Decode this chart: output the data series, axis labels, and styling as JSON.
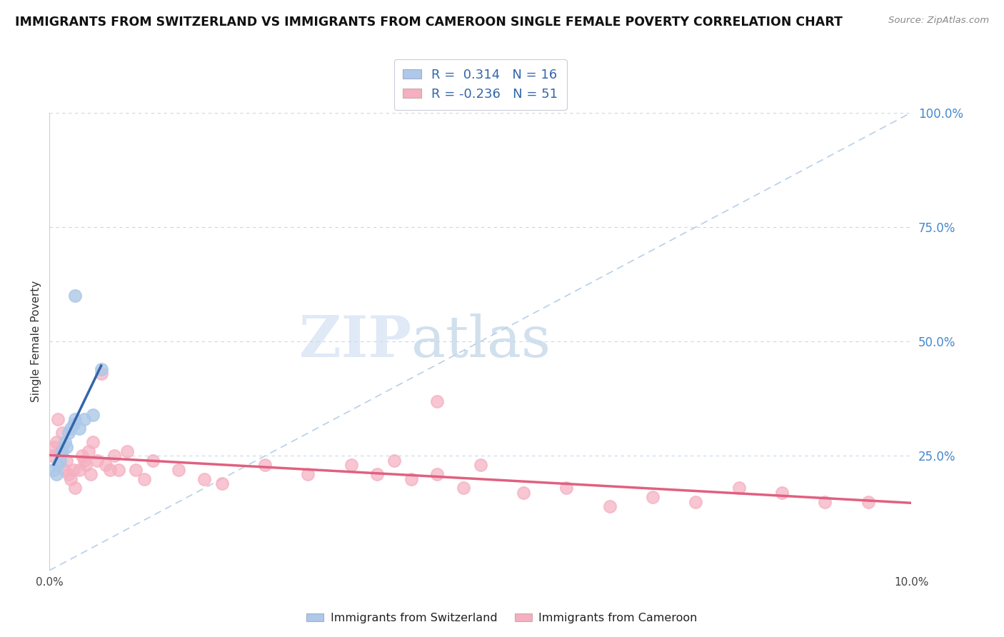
{
  "title": "IMMIGRANTS FROM SWITZERLAND VS IMMIGRANTS FROM CAMEROON SINGLE FEMALE POVERTY CORRELATION CHART",
  "source": "Source: ZipAtlas.com",
  "xlabel": "",
  "ylabel": "Single Female Poverty",
  "xlim": [
    0.0,
    10.0
  ],
  "ylim": [
    0.0,
    100.0
  ],
  "ytick_labels_right": [
    "25.0%",
    "50.0%",
    "75.0%",
    "100.0%"
  ],
  "ytick_vals_right": [
    25.0,
    50.0,
    75.0,
    100.0
  ],
  "legend_r_swiss": "0.314",
  "legend_n_swiss": "16",
  "legend_r_cam": "-0.236",
  "legend_n_cam": "51",
  "swiss_color": "#adc8e8",
  "cam_color": "#f5afc0",
  "swiss_line_color": "#3366aa",
  "cam_line_color": "#e06080",
  "diag_line_color": "#b8cfe8",
  "watermark_zip": "ZIP",
  "watermark_atlas": "atlas",
  "swiss_x": [
    0.05,
    0.08,
    0.1,
    0.12,
    0.15,
    0.18,
    0.2,
    0.22,
    0.25,
    0.28,
    0.3,
    0.35,
    0.4,
    0.5,
    0.6,
    0.3
  ],
  "swiss_y": [
    22,
    21,
    23,
    24,
    26,
    28,
    27,
    30,
    31,
    32,
    33,
    31,
    33,
    34,
    44,
    60
  ],
  "cam_x": [
    0.03,
    0.06,
    0.08,
    0.1,
    0.12,
    0.15,
    0.17,
    0.2,
    0.22,
    0.25,
    0.28,
    0.3,
    0.35,
    0.38,
    0.4,
    0.42,
    0.45,
    0.48,
    0.5,
    0.55,
    0.6,
    0.65,
    0.7,
    0.75,
    0.8,
    0.9,
    1.0,
    1.1,
    1.2,
    1.5,
    1.8,
    2.0,
    2.5,
    3.0,
    3.5,
    3.8,
    4.0,
    4.2,
    4.5,
    4.8,
    5.0,
    5.5,
    6.0,
    6.5,
    7.0,
    7.5,
    8.0,
    8.5,
    9.0,
    9.5,
    4.5
  ],
  "cam_y": [
    25,
    27,
    28,
    33,
    26,
    30,
    22,
    24,
    21,
    20,
    22,
    18,
    22,
    25,
    24,
    23,
    26,
    21,
    28,
    24,
    43,
    23,
    22,
    25,
    22,
    26,
    22,
    20,
    24,
    22,
    20,
    19,
    23,
    21,
    23,
    21,
    24,
    20,
    21,
    18,
    23,
    17,
    18,
    14,
    16,
    15,
    18,
    17,
    15,
    15,
    37
  ]
}
